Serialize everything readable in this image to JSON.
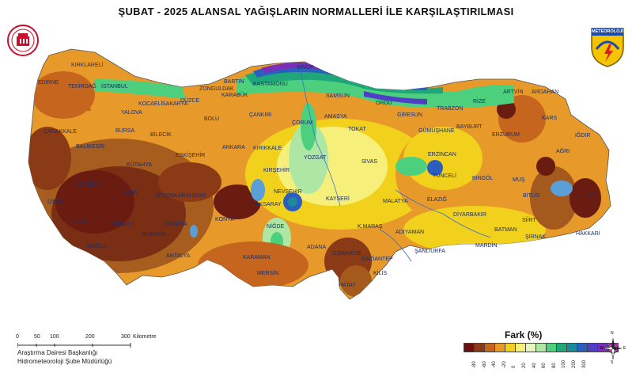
{
  "title": "ŞUBAT - 2025 ALANSAL YAĞIŞLARIN NORMALLERİ İLE KARŞILAŞTIRILMASI",
  "logo_right_text": "METEOROLOJİ",
  "cities": [
    "KIRKLARELİ",
    "EDİRNE",
    "TEKİRDAĞ",
    "İSTANBUL",
    "KOCAELİ",
    "SAKARYA",
    "DÜZCE",
    "ZONGULDAK",
    "BARTIN",
    "KASTAMONU",
    "SİNOP",
    "SAMSUN",
    "ORDU",
    "GİRESUN",
    "TRABZON",
    "RİZE",
    "ARTVİN",
    "ARDAHAN",
    "KARS",
    "IĞDIR",
    "AĞRI",
    "ERZURUM",
    "BAYBURT",
    "GÜMÜŞHANE",
    "ERZİNCAN",
    "TUNCELİ",
    "BİNGÖL",
    "MUŞ",
    "BİTLİS",
    "VAN",
    "HAKKARİ",
    "ŞIRNAK",
    "SİİRT",
    "BATMAN",
    "MARDİN",
    "DİYARBAKIR",
    "ELAZIĞ",
    "MALATYA",
    "ADIYAMAN",
    "ŞANLIURFA",
    "GAZİANTEP",
    "KİLİS",
    "HATAY",
    "OSMANİYE",
    "ADANA",
    "MERSİN",
    "K.MARAŞ",
    "KAYSERİ",
    "NİĞDE",
    "AKSARAY",
    "NEVŞEHİR",
    "KIRŞEHİR",
    "YOZGAT",
    "SİVAS",
    "TOKAT",
    "AMASYA",
    "ÇORUM",
    "KIRIKKALE",
    "ANKARA",
    "ÇANKIRI",
    "KARABÜK",
    "BOLU",
    "BİLECİK",
    "ESKİŞEHİR",
    "BURSA",
    "YALOVA",
    "BALIKESİR",
    "ÇANAKKALE",
    "KÜTAHYA",
    "MANİSA",
    "İZMİR",
    "AYDIN",
    "MUĞLA",
    "DENİZLİ",
    "UŞAK",
    "AFYONKARAHİSAR",
    "ISPARTA",
    "BURDUR",
    "ANTALYA",
    "KONYA",
    "KARAMAN"
  ],
  "scale": {
    "ticks": [
      "0",
      "50",
      "100",
      "200",
      "300"
    ],
    "unit": "Kilometre"
  },
  "department": [
    "Araştırma Dairesi Başkanlığı",
    "Hidrometeoroloji Şube Müdürlüğü"
  ],
  "legend": {
    "title": "Fark (%)",
    "colors": [
      "#6b0f0f",
      "#8b3a16",
      "#c5651e",
      "#e79a2a",
      "#f2d11c",
      "#f6f07a",
      "#e7f5c2",
      "#aee7a4",
      "#4cd07e",
      "#1fa77a",
      "#1c8a98",
      "#2b5fbf",
      "#4f3fc6",
      "#7a2fb8",
      "#d43bcf"
    ],
    "ticks": [
      "-80",
      "-60",
      "-40",
      "-20",
      "0",
      "20",
      "40",
      "60",
      "80",
      "100",
      "200",
      "300"
    ]
  },
  "compass": {
    "n": "N",
    "s": "S",
    "e": "E",
    "w": "W"
  }
}
